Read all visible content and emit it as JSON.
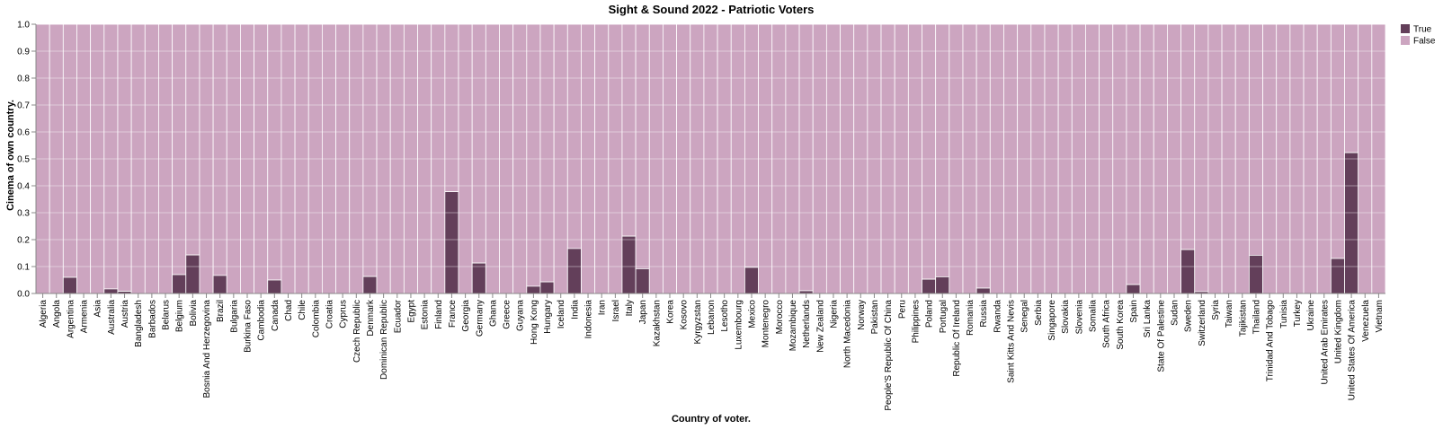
{
  "chart_data": {
    "type": "bar",
    "stacked": true,
    "normalized": true,
    "title": "Sight & Sound 2022 - Patriotic Voters",
    "xlabel": "Country of voter.",
    "ylabel": "Cinema of own country.",
    "ylim": [
      0,
      1
    ],
    "yticks": [
      "0.0",
      "0.1",
      "0.2",
      "0.3",
      "0.4",
      "0.5",
      "0.6",
      "0.7",
      "0.8",
      "0.9",
      "1.0"
    ],
    "grid": true,
    "legend_position": "top-right",
    "colors": {
      "True": "#633f5a",
      "False": "#cca5c0"
    },
    "categories": [
      "Algeria",
      "Angola",
      "Argentina",
      "Armenia",
      "Asia",
      "Australia",
      "Austria",
      "Bangladesh",
      "Barbados",
      "Belarus",
      "Belgium",
      "Bolivia",
      "Bosnia And Herzegovina",
      "Brazil",
      "Bulgaria",
      "Burkina Faso",
      "Cambodia",
      "Canada",
      "Chad",
      "Chile",
      "Colombia",
      "Croatia",
      "Cyprus",
      "Czech Republic",
      "Denmark",
      "Dominican Republic",
      "Ecuador",
      "Egypt",
      "Estonia",
      "Finland",
      "France",
      "Georgia",
      "Germany",
      "Ghana",
      "Greece",
      "Guyana",
      "Hong Kong",
      "Hungary",
      "Iceland",
      "India",
      "Indonesia",
      "Iran",
      "Israel",
      "Italy",
      "Japan",
      "Kazakhstan",
      "Korea",
      "Kosovo",
      "Kyrgyzstan",
      "Lebanon",
      "Lesotho",
      "Luxembourg",
      "Mexico",
      "Montenegro",
      "Morocco",
      "Mozambique",
      "Netherlands",
      "New Zealand",
      "Nigeria",
      "North Macedonia",
      "Norway",
      "Pakistan",
      "People'S Republic Of China",
      "Peru",
      "Philippines",
      "Poland",
      "Portugal",
      "Republic Of Ireland",
      "Romania",
      "Russia",
      "Rwanda",
      "Saint Kitts And Nevis",
      "Senegal",
      "Serbia",
      "Singapore",
      "Slovakia",
      "Slovenia",
      "Somalia",
      "South Africa",
      "South Korea",
      "Spain",
      "Sri Lanka",
      "State Of Palestine",
      "Sudan",
      "Sweden",
      "Switzerland",
      "Syria",
      "Taiwan",
      "Tajikistan",
      "Thailand",
      "Trinidad And Tobago",
      "Tunisia",
      "Turkey",
      "Ukraine",
      "United Arab Emirates",
      "United Kingdom",
      "United States Of America",
      "Venezuela",
      "Vietnam"
    ],
    "series": [
      {
        "name": "True",
        "values": [
          0,
          0,
          0.06,
          0,
          0,
          0.017,
          0.008,
          0,
          0,
          0,
          0.07,
          0.143,
          0,
          0.067,
          0,
          0,
          0,
          0.05,
          0,
          0,
          0,
          0,
          0,
          0,
          0.063,
          0,
          0,
          0,
          0,
          0,
          0.378,
          0,
          0.113,
          0,
          0,
          0,
          0.027,
          0.043,
          0,
          0.167,
          0,
          0,
          0,
          0.213,
          0.092,
          0,
          0,
          0,
          0,
          0,
          0,
          0,
          0.097,
          0,
          0,
          0,
          0.01,
          0,
          0,
          0,
          0,
          0,
          0,
          0,
          0,
          0.053,
          0.062,
          0,
          0,
          0.02,
          0,
          0,
          0,
          0,
          0,
          0,
          0,
          0,
          0,
          0,
          0.033,
          0,
          0,
          0,
          0.163,
          0.007,
          0,
          0,
          0,
          0.142,
          0,
          0,
          0,
          0,
          0,
          0.13,
          0.523,
          0,
          0
        ]
      },
      {
        "name": "False",
        "values": [
          1,
          1,
          0.94,
          1,
          1,
          0.983,
          0.992,
          1,
          1,
          1,
          0.93,
          0.857,
          1,
          0.933,
          1,
          1,
          1,
          0.95,
          1,
          1,
          1,
          1,
          1,
          1,
          0.937,
          1,
          1,
          1,
          1,
          1,
          0.622,
          1,
          0.887,
          1,
          1,
          1,
          0.973,
          0.957,
          1,
          0.833,
          1,
          1,
          1,
          0.787,
          0.908,
          1,
          1,
          1,
          1,
          1,
          1,
          1,
          0.903,
          1,
          1,
          1,
          0.99,
          1,
          1,
          1,
          1,
          1,
          1,
          1,
          1,
          0.947,
          0.938,
          1,
          1,
          0.98,
          1,
          1,
          1,
          1,
          1,
          1,
          1,
          1,
          1,
          1,
          0.967,
          1,
          1,
          1,
          0.837,
          0.993,
          1,
          1,
          1,
          0.858,
          1,
          1,
          1,
          1,
          1,
          0.87,
          0.477,
          1,
          1
        ]
      }
    ]
  }
}
